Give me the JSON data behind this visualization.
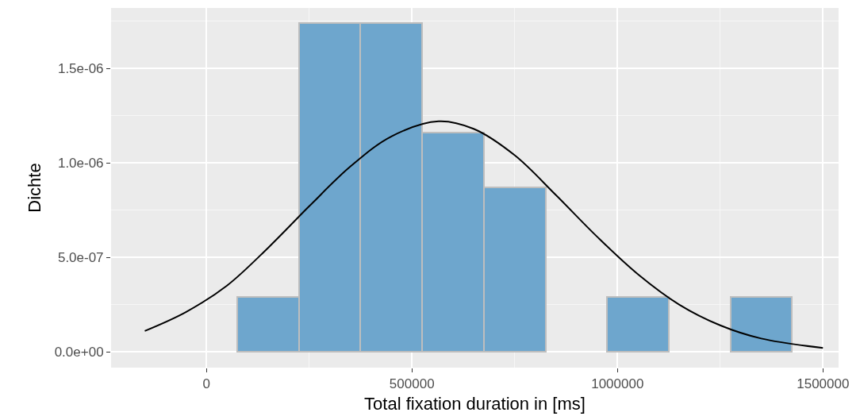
{
  "chart_data": {
    "type": "histogram",
    "xlabel": "Total fixation duration in [ms]",
    "ylabel": "Dichte",
    "xlim": [
      -232000,
      1538000
    ],
    "ylim": [
      -8.4e-08,
      1.82e-06
    ],
    "xticks": [
      0,
      500000,
      1000000,
      1500000
    ],
    "yticks": [
      {
        "value": 0,
        "label": "0.0e+00"
      },
      {
        "value": 5e-07,
        "label": "5.0e-07"
      },
      {
        "value": 1e-06,
        "label": "1.0e-06"
      },
      {
        "value": 1.5e-06,
        "label": "1.5e-06"
      }
    ],
    "grid": true,
    "series": [
      {
        "color": "#6ea6cd",
        "bins": [
          -75000,
          75000,
          225000,
          375000,
          525000,
          675000,
          825000,
          975000,
          1125000,
          1275000,
          1425000
        ],
        "values": [
          0,
          2.9e-07,
          1.74e-06,
          1.74e-06,
          1.16e-06,
          8.7e-07,
          0,
          2.9e-07,
          0,
          2.9e-07
        ]
      },
      {
        "type": "line",
        "color": "#000000",
        "x": [
          -150000,
          -50000,
          50000,
          150000,
          250000,
          350000,
          450000,
          565000,
          650000,
          750000,
          850000,
          950000,
          1050000,
          1150000,
          1250000,
          1350000,
          1500000
        ],
        "values": [
          1.1e-07,
          2.1e-07,
          3.5e-07,
          5.5e-07,
          7.7e-07,
          9.8e-07,
          1.14e-06,
          1.22e-06,
          1.18e-06,
          1.04e-06,
          8.3e-07,
          6.1e-07,
          4.1e-07,
          2.5e-07,
          1.4e-07,
          7e-08,
          2e-08
        ]
      }
    ]
  }
}
